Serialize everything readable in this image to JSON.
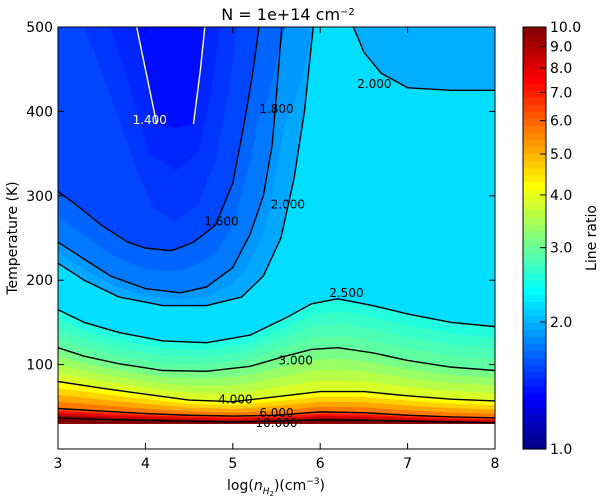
{
  "chart_data": {
    "type": "heatmap",
    "title": "N = 1e+14 cm",
    "title_sup": "−2",
    "xlabel": {
      "pre": "log(",
      "var": "n",
      "sub": "H",
      "subsub": "2",
      "post": ")(cm",
      "sup": "−3",
      "close": ")"
    },
    "ylabel": "Temperature (K)",
    "colorbar_label": "Line ratio",
    "xlim": [
      3,
      8
    ],
    "ylim": [
      0,
      500
    ],
    "data_ymin": 30,
    "x_ticks": [
      {
        "v": 3,
        "t": "3"
      },
      {
        "v": 4,
        "t": "4"
      },
      {
        "v": 5,
        "t": "5"
      },
      {
        "v": 6,
        "t": "6"
      },
      {
        "v": 7,
        "t": "7"
      },
      {
        "v": 8,
        "t": "8"
      }
    ],
    "y_ticks": [
      {
        "v": 100,
        "t": "100"
      },
      {
        "v": 200,
        "t": "200"
      },
      {
        "v": 300,
        "t": "300"
      },
      {
        "v": 400,
        "t": "400"
      },
      {
        "v": 500,
        "t": "500"
      }
    ],
    "colorbar_scale": "log",
    "colorbar_range": [
      1.0,
      10.0
    ],
    "colorbar_ticks": [
      {
        "v": 1.0,
        "t": "1.0"
      },
      {
        "v": 2.0,
        "t": "2.0"
      },
      {
        "v": 3.0,
        "t": "3.0"
      },
      {
        "v": 4.0,
        "t": "4.0"
      },
      {
        "v": 5.0,
        "t": "5.0"
      },
      {
        "v": 6.0,
        "t": "6.0"
      },
      {
        "v": 7.0,
        "t": "7.0"
      },
      {
        "v": 8.0,
        "t": "8.0"
      },
      {
        "v": 9.0,
        "t": "9.0"
      },
      {
        "v": 10.0,
        "t": "10.0"
      }
    ],
    "colormap": "jet",
    "contours": [
      {
        "level": 1.4,
        "label": "1.400",
        "color": "#ffff99",
        "label_at": [
          4.05,
          385
        ],
        "points": [
          [
            3.9,
            500
          ],
          [
            4.0,
            450
          ],
          [
            4.13,
            385
          ]
        ]
      },
      {
        "level": 1.4,
        "label": "",
        "color": "#ffff99",
        "label_at": null,
        "points": [
          [
            4.55,
            385
          ],
          [
            4.63,
            450
          ],
          [
            4.68,
            500
          ]
        ]
      },
      {
        "level": 1.6,
        "label": "1.600",
        "color": "#000000",
        "label_at": [
          4.87,
          265
        ],
        "points": [
          [
            3.0,
            305
          ],
          [
            3.2,
            290
          ],
          [
            3.5,
            265
          ],
          [
            3.8,
            245
          ],
          [
            4.0,
            238
          ],
          [
            4.3,
            235
          ],
          [
            4.55,
            245
          ],
          [
            4.8,
            265
          ],
          [
            5.0,
            315
          ],
          [
            5.12,
            380
          ],
          [
            5.22,
            440
          ],
          [
            5.3,
            500
          ]
        ]
      },
      {
        "level": 1.8,
        "label": "1.800",
        "color": "#000000",
        "label_at": [
          5.5,
          398
        ],
        "points": [
          [
            3.0,
            245
          ],
          [
            3.3,
            225
          ],
          [
            3.6,
            205
          ],
          [
            4.0,
            190
          ],
          [
            4.4,
            185
          ],
          [
            4.7,
            192
          ],
          [
            5.0,
            215
          ],
          [
            5.2,
            255
          ],
          [
            5.35,
            300
          ],
          [
            5.45,
            360
          ],
          [
            5.5,
            420
          ],
          [
            5.56,
            500
          ]
        ]
      },
      {
        "level": 2.0,
        "label": "2.000",
        "color": "#000000",
        "label_at": [
          6.62,
          428
        ],
        "points": [
          [
            6.38,
            500
          ],
          [
            6.5,
            470
          ],
          [
            6.7,
            445
          ],
          [
            7.0,
            428
          ],
          [
            7.5,
            425
          ],
          [
            8.0,
            425
          ]
        ]
      },
      {
        "level": 2.0,
        "label": "2.000",
        "color": "#000000",
        "label_at": [
          5.63,
          285
        ],
        "points": [
          [
            3.0,
            220
          ],
          [
            3.3,
            200
          ],
          [
            3.7,
            180
          ],
          [
            4.2,
            170
          ],
          [
            4.7,
            170
          ],
          [
            5.1,
            180
          ],
          [
            5.35,
            205
          ],
          [
            5.55,
            250
          ],
          [
            5.7,
            320
          ],
          [
            5.82,
            400
          ],
          [
            5.88,
            460
          ],
          [
            5.92,
            500
          ]
        ]
      },
      {
        "level": 2.5,
        "label": "2.500",
        "color": "#000000",
        "label_at": [
          6.3,
          180
        ],
        "points": [
          [
            3.0,
            165
          ],
          [
            3.3,
            150
          ],
          [
            3.7,
            138
          ],
          [
            4.2,
            128
          ],
          [
            4.7,
            126
          ],
          [
            5.2,
            135
          ],
          [
            5.6,
            155
          ],
          [
            5.9,
            172
          ],
          [
            6.2,
            178
          ],
          [
            6.6,
            170
          ],
          [
            7.0,
            160
          ],
          [
            7.5,
            150
          ],
          [
            8.0,
            145
          ]
        ]
      },
      {
        "level": 3.0,
        "label": "3.000",
        "color": "#000000",
        "label_at": [
          5.72,
          100
        ],
        "points": [
          [
            3.0,
            120
          ],
          [
            3.3,
            110
          ],
          [
            3.7,
            101
          ],
          [
            4.2,
            93
          ],
          [
            4.7,
            92
          ],
          [
            5.2,
            98
          ],
          [
            5.6,
            110
          ],
          [
            5.9,
            118
          ],
          [
            6.2,
            120
          ],
          [
            6.6,
            114
          ],
          [
            7.0,
            105
          ],
          [
            7.5,
            97
          ],
          [
            8.0,
            93
          ]
        ]
      },
      {
        "level": 4.0,
        "label": "4.000",
        "color": "#000000",
        "label_at": [
          5.03,
          54
        ],
        "points": [
          [
            3.0,
            80
          ],
          [
            3.5,
            72
          ],
          [
            4.0,
            65
          ],
          [
            4.5,
            58
          ],
          [
            5.0,
            56
          ],
          [
            5.5,
            62
          ],
          [
            6.0,
            68
          ],
          [
            6.5,
            68
          ],
          [
            7.0,
            63
          ],
          [
            7.5,
            59
          ],
          [
            8.0,
            57
          ]
        ]
      },
      {
        "level": 6.0,
        "label": "6.000",
        "color": "#000000",
        "label_at": [
          5.5,
          38
        ],
        "points": [
          [
            3.0,
            48
          ],
          [
            3.5,
            45
          ],
          [
            4.0,
            42
          ],
          [
            4.5,
            40
          ],
          [
            5.0,
            39
          ],
          [
            5.5,
            40
          ],
          [
            6.0,
            44
          ],
          [
            6.5,
            43
          ],
          [
            7.0,
            40
          ],
          [
            7.5,
            38
          ],
          [
            8.0,
            37
          ]
        ]
      },
      {
        "level": 10.0,
        "label": "10.000",
        "color": "#000000",
        "label_at": [
          5.5,
          26
        ],
        "points": [
          [
            3.0,
            37
          ],
          [
            3.5,
            35
          ],
          [
            4.0,
            34
          ],
          [
            4.5,
            33
          ],
          [
            5.0,
            32
          ],
          [
            5.5,
            33
          ],
          [
            6.0,
            34.5
          ],
          [
            6.5,
            34
          ],
          [
            7.0,
            33
          ],
          [
            7.5,
            32
          ],
          [
            8.0,
            31
          ]
        ]
      }
    ]
  }
}
